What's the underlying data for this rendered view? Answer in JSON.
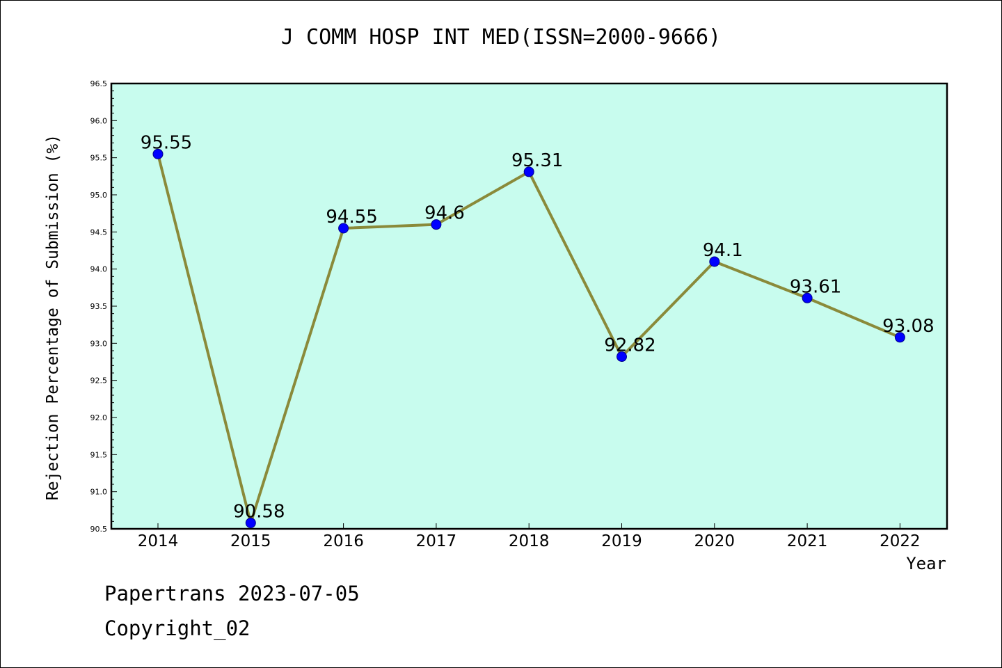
{
  "chart_data": {
    "type": "line",
    "title": "J COMM HOSP INT MED(ISSN=2000-9666)",
    "xlabel": "Year",
    "ylabel": "Rejection Percentage of Submission (%)",
    "categories": [
      "2014",
      "2015",
      "2016",
      "2017",
      "2018",
      "2019",
      "2020",
      "2021",
      "2022"
    ],
    "values": [
      95.55,
      90.58,
      94.55,
      94.6,
      95.31,
      92.82,
      94.1,
      93.61,
      93.08
    ],
    "data_labels": [
      "95.55",
      "90.58",
      "94.55",
      "94.6",
      "95.31",
      "92.82",
      "94.1",
      "93.61",
      "93.08"
    ],
    "ylim": [
      90.5,
      96.5
    ],
    "yticks": [
      "90.5",
      "91.0",
      "91.5",
      "92.0",
      "92.5",
      "93.0",
      "93.5",
      "94.0",
      "94.5",
      "95.0",
      "95.5",
      "96.0",
      "96.5"
    ],
    "grid": false,
    "colors": {
      "plot_background": "#c8fcee",
      "line": "#8a8a3a",
      "marker": "#0000ff"
    }
  },
  "footer": {
    "line1": "Papertrans 2023-07-05",
    "line2": "Copyright_02"
  }
}
